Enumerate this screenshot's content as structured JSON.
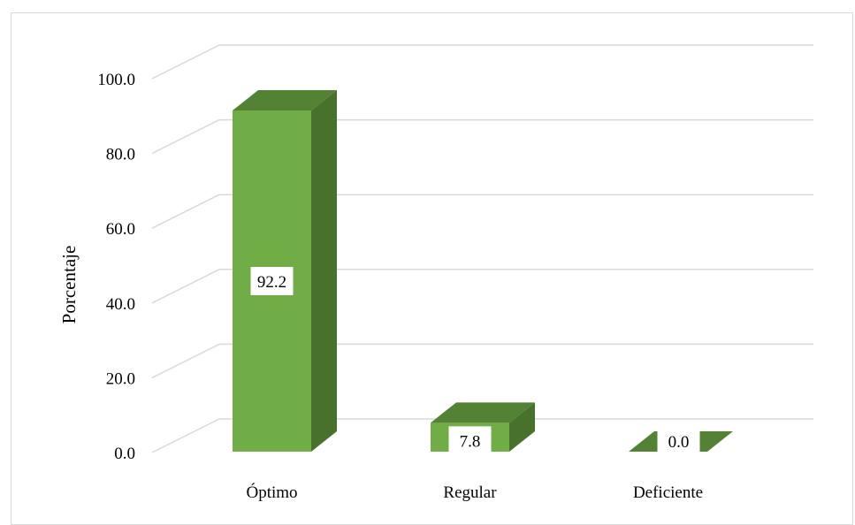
{
  "chart_data": {
    "type": "bar",
    "style": "3d-column",
    "categories": [
      "Óptimo",
      "Regular",
      "Deficiente"
    ],
    "values": [
      92.2,
      7.8,
      0.0
    ],
    "data_labels": [
      "92.2",
      "7.8",
      "0.0"
    ],
    "title": "",
    "xlabel": "",
    "ylabel": "Porcentaje",
    "ylim": [
      0,
      100
    ],
    "yticks": [
      "0.0",
      "20.0",
      "40.0",
      "60.0",
      "80.0",
      "100.0"
    ],
    "grid": true,
    "legend": "none",
    "colors": {
      "front": "#70ad47",
      "side": "#48712c",
      "top": "#548235",
      "grid": "#d9d9d9",
      "label_bg": "#ffffff"
    }
  }
}
